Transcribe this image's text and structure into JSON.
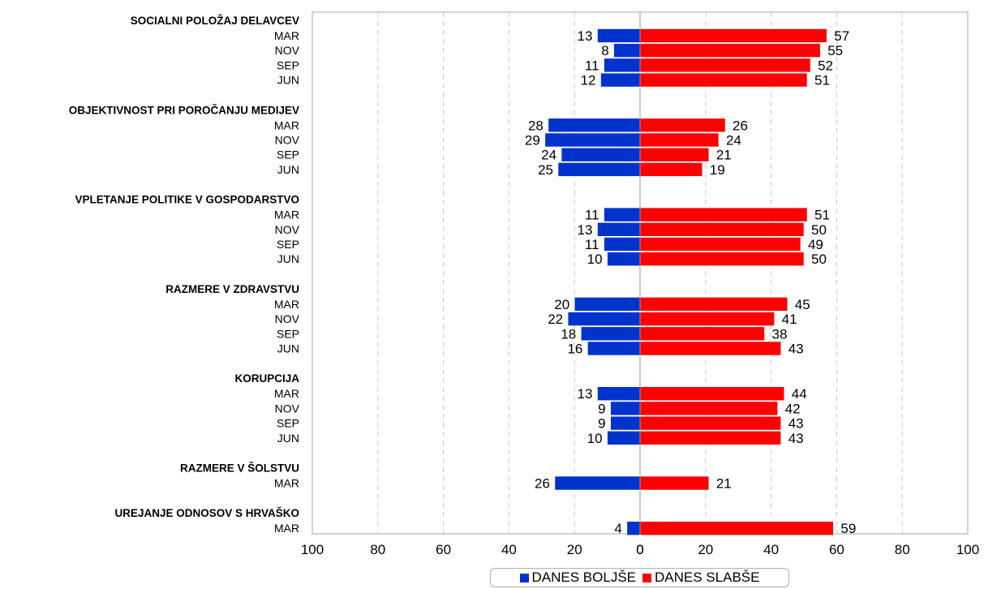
{
  "chart_data": {
    "type": "bar",
    "orientation": "horizontal-diverging",
    "title": "",
    "xlabel": "",
    "ylabel": "",
    "xlim_left": [
      0,
      100
    ],
    "xlim_right": [
      0,
      100
    ],
    "x_ticks_left": [
      "100",
      "80",
      "60",
      "40",
      "20",
      "0"
    ],
    "x_ticks_right": [
      "0",
      "20",
      "40",
      "60",
      "80",
      "100"
    ],
    "grid": "vertical-dashed",
    "legend_position": "bottom-center",
    "colors": {
      "boljse": "#0033cc",
      "slabse": "#ff0000"
    },
    "series": [
      {
        "name": "DANES BOLJŠE",
        "key": "boljse",
        "side": "left"
      },
      {
        "name": "DANES SLABŠE",
        "key": "slabse",
        "side": "right"
      }
    ],
    "groups": [
      {
        "label": "SOCIALNI POLOŽAJ DELAVCEV",
        "rows": [
          {
            "label": "MAR",
            "boljse": 13,
            "slabse": 57
          },
          {
            "label": "NOV",
            "boljse": 8,
            "slabse": 55
          },
          {
            "label": "SEP",
            "boljse": 11,
            "slabse": 52
          },
          {
            "label": "JUN",
            "boljse": 12,
            "slabse": 51
          }
        ]
      },
      {
        "label": "OBJEKTIVNOST PRI POROČANJU MEDIJEV",
        "rows": [
          {
            "label": "MAR",
            "boljse": 28,
            "slabse": 26
          },
          {
            "label": "NOV",
            "boljse": 29,
            "slabse": 24
          },
          {
            "label": "SEP",
            "boljse": 24,
            "slabse": 21
          },
          {
            "label": "JUN",
            "boljse": 25,
            "slabse": 19
          }
        ]
      },
      {
        "label": "VPLETANJE POLITIKE V GOSPODARSTVO",
        "rows": [
          {
            "label": "MAR",
            "boljse": 11,
            "slabse": 51
          },
          {
            "label": "NOV",
            "boljse": 13,
            "slabse": 50
          },
          {
            "label": "SEP",
            "boljse": 11,
            "slabse": 49
          },
          {
            "label": "JUN",
            "boljse": 10,
            "slabse": 50
          }
        ]
      },
      {
        "label": "RAZMERE V ZDRAVSTVU",
        "rows": [
          {
            "label": "MAR",
            "boljse": 20,
            "slabse": 45
          },
          {
            "label": "NOV",
            "boljse": 22,
            "slabse": 41
          },
          {
            "label": "SEP",
            "boljse": 18,
            "slabse": 38
          },
          {
            "label": "JUN",
            "boljse": 16,
            "slabse": 43
          }
        ]
      },
      {
        "label": "KORUPCIJA",
        "rows": [
          {
            "label": "MAR",
            "boljse": 13,
            "slabse": 44
          },
          {
            "label": "NOV",
            "boljse": 9,
            "slabse": 42
          },
          {
            "label": "SEP",
            "boljse": 9,
            "slabse": 43
          },
          {
            "label": "JUN",
            "boljse": 10,
            "slabse": 43
          }
        ]
      },
      {
        "label": "RAZMERE V ŠOLSTVU",
        "rows": [
          {
            "label": "MAR",
            "boljse": 26,
            "slabse": 21
          }
        ]
      },
      {
        "label": "UREJANJE ODNOSOV S HRVAŠKO",
        "rows": [
          {
            "label": "MAR",
            "boljse": 4,
            "slabse": 59
          }
        ]
      }
    ]
  }
}
